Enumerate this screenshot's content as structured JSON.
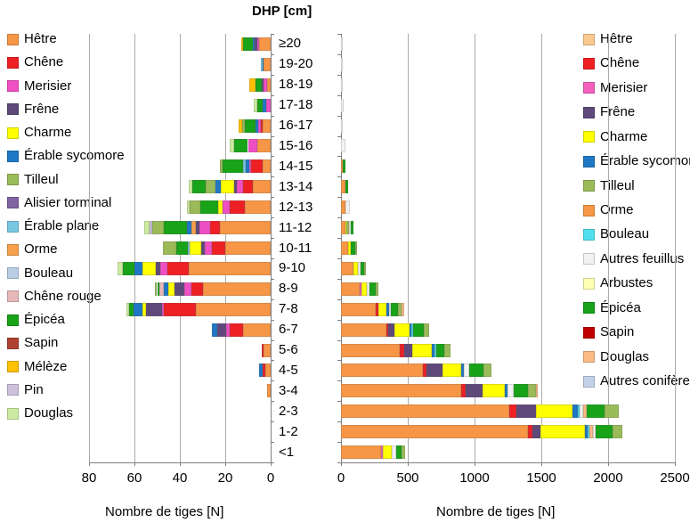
{
  "title": "DHP [cm]",
  "axis": {
    "left": {
      "label": "Nombre de tiges [N]",
      "ticks": [
        80,
        60,
        40,
        20,
        0
      ],
      "max": 80,
      "reversed": true
    },
    "right": {
      "label": "Nombre de tiges [N]",
      "ticks": [
        0,
        500,
        1000,
        1500,
        2000,
        2500
      ],
      "max": 2500,
      "reversed": false
    }
  },
  "categories": [
    "≥20",
    "19-20",
    "18-19",
    "17-18",
    "16-17",
    "15-16",
    "14-15",
    "13-14",
    "12-13",
    "11-12",
    "10-11",
    "9-10",
    "8-9",
    "7-8",
    "6-7",
    "5-6",
    "4-5",
    "3-4",
    "2-3",
    "1-2",
    "<1"
  ],
  "legend_left": [
    {
      "key": "hetre",
      "label": "Hêtre",
      "color": "#F79646"
    },
    {
      "key": "chene",
      "label": "Chêne",
      "color": "#EE2024"
    },
    {
      "key": "merisier",
      "label": "Merisier",
      "color": "#F04FC4"
    },
    {
      "key": "frene",
      "label": "Frêne",
      "color": "#5F497A"
    },
    {
      "key": "charme",
      "label": "Charme",
      "color": "#FFFF00"
    },
    {
      "key": "erable_sycomore",
      "label": "Érable sycomore",
      "color": "#1F78C5"
    },
    {
      "key": "tilleul",
      "label": "Tilleul",
      "color": "#9BBB59"
    },
    {
      "key": "alisier_torminal",
      "label": "Alisier torminal",
      "color": "#8064A2"
    },
    {
      "key": "erable_plane",
      "label": "Érable plane",
      "color": "#79C7E3"
    },
    {
      "key": "orme",
      "label": "Orme",
      "color": "#F7A04B"
    },
    {
      "key": "bouleau",
      "label": "Bouleau",
      "color": "#B9CDE5"
    },
    {
      "key": "chene_rouge",
      "label": "Chêne rouge",
      "color": "#E6B9B8"
    },
    {
      "key": "epicea",
      "label": "Épicéa",
      "color": "#18A318"
    },
    {
      "key": "sapin",
      "label": "Sapin",
      "color": "#AE4132"
    },
    {
      "key": "meleze",
      "label": "Mélèze",
      "color": "#FFC000"
    },
    {
      "key": "pin",
      "label": "Pin",
      "color": "#CCC1DA"
    },
    {
      "key": "douglas",
      "label": "Douglas",
      "color": "#CDEBA0"
    }
  ],
  "legend_right": [
    {
      "key": "hetre",
      "label": "Hêtre",
      "color": "#FAC98F"
    },
    {
      "key": "chene",
      "label": "Chêne",
      "color": "#EE2024"
    },
    {
      "key": "merisier",
      "label": "Merisier",
      "color": "#F360BE"
    },
    {
      "key": "frene",
      "label": "Frêne",
      "color": "#5F497A"
    },
    {
      "key": "charme",
      "label": "Charme",
      "color": "#FFFF00"
    },
    {
      "key": "erable_sycomore",
      "label": "Érable sycomore",
      "color": "#1F78C5"
    },
    {
      "key": "tilleul",
      "label": "Tilleul",
      "color": "#9BBB59"
    },
    {
      "key": "orme",
      "label": "Orme",
      "color": "#F79646"
    },
    {
      "key": "bouleau",
      "label": "Bouleau",
      "color": "#4FE0EE"
    },
    {
      "key": "autres_feuillus",
      "label": "Autres feuillus",
      "color": "#F2F2F2"
    },
    {
      "key": "arbustes",
      "label": "Arbustes",
      "color": "#FFFFB3"
    },
    {
      "key": "epicea",
      "label": "Épicéa",
      "color": "#18A318"
    },
    {
      "key": "sapin",
      "label": "Sapin",
      "color": "#C00000"
    },
    {
      "key": "douglas",
      "label": "Douglas",
      "color": "#F9BA84"
    },
    {
      "key": "autres_coniferes",
      "label": "Autres conifères",
      "color": "#C3D0E8"
    }
  ],
  "chart_data": {
    "type": "bar",
    "subtype": "horizontal-stacked, back-to-back pyramid",
    "title": "DHP [cm]",
    "unit": "N (nombre de tiges)",
    "categories": [
      "≥20",
      "19-20",
      "18-19",
      "17-18",
      "16-17",
      "15-16",
      "14-15",
      "13-14",
      "12-13",
      "11-12",
      "10-11",
      "9-10",
      "8-9",
      "7-8",
      "6-7",
      "5-6",
      "4-5",
      "3-4",
      "2-3",
      "1-2",
      "<1"
    ],
    "left_chart": {
      "xlabel": "Nombre de tiges [N]",
      "xlim": [
        80,
        0
      ],
      "grid": true,
      "rows": [
        [
          [
            "hetre",
            5
          ],
          [
            "merisier",
            1
          ],
          [
            "frene",
            1
          ],
          [
            "erable_sycomore",
            1
          ],
          [
            "epicea",
            4
          ],
          [
            "meleze",
            1
          ]
        ],
        [
          [
            "hetre",
            3
          ],
          [
            "erable_sycomore",
            1
          ],
          [
            "erable_plane",
            0.5
          ]
        ],
        [
          [
            "hetre",
            1.5
          ],
          [
            "merisier",
            1.5
          ],
          [
            "frene",
            1
          ],
          [
            "epicea",
            2.5
          ],
          [
            "meleze",
            3
          ]
        ],
        [
          [
            "merisier",
            2
          ],
          [
            "erable_sycomore",
            1.5
          ],
          [
            "epicea",
            2.5
          ],
          [
            "douglas",
            1.5
          ]
        ],
        [
          [
            "hetre",
            3.5
          ],
          [
            "chene",
            1
          ],
          [
            "merisier",
            1
          ],
          [
            "erable_sycomore",
            1
          ],
          [
            "epicea",
            5
          ],
          [
            "tilleul",
            1
          ],
          [
            "meleze",
            1.5
          ]
        ],
        [
          [
            "hetre",
            6
          ],
          [
            "merisier",
            4
          ],
          [
            "epicea",
            6
          ],
          [
            "douglas",
            2
          ]
        ],
        [
          [
            "hetre",
            3.5
          ],
          [
            "chene",
            5
          ],
          [
            "merisier",
            1
          ],
          [
            "erable_sycomore",
            1.5
          ],
          [
            "erable_plane",
            1
          ],
          [
            "epicea",
            9
          ],
          [
            "tilleul",
            1.5
          ]
        ],
        [
          [
            "hetre",
            8
          ],
          [
            "chene",
            4
          ],
          [
            "merisier",
            3
          ],
          [
            "frene",
            1
          ],
          [
            "charme",
            6
          ],
          [
            "erable_sycomore",
            2.5
          ],
          [
            "tilleul",
            4
          ],
          [
            "epicea",
            6
          ],
          [
            "douglas",
            1.5
          ]
        ],
        [
          [
            "hetre",
            11.5
          ],
          [
            "chene",
            6.5
          ],
          [
            "merisier",
            3
          ],
          [
            "charme",
            2
          ],
          [
            "epicea",
            8
          ],
          [
            "tilleul",
            4.5
          ],
          [
            "douglas",
            1.5
          ]
        ],
        [
          [
            "hetre",
            22.5
          ],
          [
            "chene",
            4
          ],
          [
            "merisier",
            5
          ],
          [
            "frene",
            1.5
          ],
          [
            "orme",
            2
          ],
          [
            "erable_sycomore",
            2
          ],
          [
            "epicea",
            10
          ],
          [
            "tilleul",
            5
          ],
          [
            "pin",
            1.5
          ],
          [
            "douglas",
            2
          ]
        ],
        [
          [
            "hetre",
            20
          ],
          [
            "chene",
            6
          ],
          [
            "merisier",
            3
          ],
          [
            "frene",
            1.5
          ],
          [
            "charme",
            5
          ],
          [
            "erable_plane",
            1
          ],
          [
            "epicea",
            5
          ],
          [
            "tilleul",
            6
          ]
        ],
        [
          [
            "hetre",
            36
          ],
          [
            "chene",
            9.5
          ],
          [
            "merisier",
            3
          ],
          [
            "frene",
            2
          ],
          [
            "charme",
            6
          ],
          [
            "erable_sycomore",
            3.5
          ],
          [
            "epicea",
            5
          ],
          [
            "douglas",
            2.5
          ]
        ],
        [
          [
            "hetre",
            30
          ],
          [
            "chene",
            5
          ],
          [
            "merisier",
            3
          ],
          [
            "frene",
            4.5
          ],
          [
            "charme",
            2.5
          ],
          [
            "erable_sycomore",
            2
          ],
          [
            "chene_rouge",
            2
          ],
          [
            "epicea",
            1
          ],
          [
            "tilleul",
            1
          ]
        ],
        [
          [
            "hetre",
            33
          ],
          [
            "chene",
            14
          ],
          [
            "merisier",
            1
          ],
          [
            "frene",
            7
          ],
          [
            "charme",
            1.5
          ],
          [
            "erable_sycomore",
            4
          ],
          [
            "epicea",
            2
          ],
          [
            "douglas",
            1
          ]
        ],
        [
          [
            "hetre",
            12
          ],
          [
            "chene",
            6
          ],
          [
            "merisier",
            1.5
          ],
          [
            "frene",
            4
          ],
          [
            "erable_sycomore",
            2.5
          ]
        ],
        [
          [
            "hetre",
            3
          ],
          [
            "chene",
            1
          ]
        ],
        [
          [
            "hetre",
            2.5
          ],
          [
            "chene",
            1
          ],
          [
            "erable_sycomore",
            1.5
          ]
        ],
        [
          [
            "hetre",
            1.5
          ]
        ],
        [],
        [],
        []
      ]
    },
    "right_chart": {
      "xlabel": "Nombre de tiges [N]",
      "xlim": [
        0,
        2500
      ],
      "grid": true,
      "rows": [
        [
          [
            "autres_feuillus",
            8
          ]
        ],
        [
          [
            "autres_feuillus",
            5
          ]
        ],
        [
          [
            "autres_feuillus",
            3
          ]
        ],
        [
          [
            "autres_feuillus",
            22
          ]
        ],
        [
          [
            "autres_feuillus",
            5
          ]
        ],
        [
          [
            "autres_feuillus",
            30
          ]
        ],
        [
          [
            "orme",
            10
          ],
          [
            "epicea",
            20
          ]
        ],
        [
          [
            "orme",
            35
          ],
          [
            "epicea",
            20
          ]
        ],
        [
          [
            "orme",
            30
          ],
          [
            "autres_feuillus",
            35
          ]
        ],
        [
          [
            "orme",
            30
          ],
          [
            "charme",
            10
          ],
          [
            "tilleul",
            20
          ],
          [
            "autres_feuillus",
            15
          ],
          [
            "epicea",
            15
          ]
        ],
        [
          [
            "orme",
            55
          ],
          [
            "charme",
            15
          ],
          [
            "epicea",
            35
          ],
          [
            "tilleul",
            15
          ]
        ],
        [
          [
            "orme",
            90
          ],
          [
            "charme",
            35
          ],
          [
            "autres_feuillus",
            20
          ],
          [
            "epicea",
            25
          ],
          [
            "tilleul",
            15
          ]
        ],
        [
          [
            "orme",
            140
          ],
          [
            "merisier",
            15
          ],
          [
            "charme",
            35
          ],
          [
            "autres_feuillus",
            25
          ],
          [
            "epicea",
            45
          ],
          [
            "tilleul",
            20
          ]
        ],
        [
          [
            "orme",
            260
          ],
          [
            "chene",
            20
          ],
          [
            "charme",
            60
          ],
          [
            "erable_sycomore",
            18
          ],
          [
            "autres_feuillus",
            12
          ],
          [
            "epicea",
            55
          ],
          [
            "tilleul",
            30
          ],
          [
            "douglas",
            15
          ]
        ],
        [
          [
            "orme",
            340
          ],
          [
            "chene",
            15
          ],
          [
            "frene",
            45
          ],
          [
            "charme",
            110
          ],
          [
            "erable_sycomore",
            15
          ],
          [
            "bouleau",
            18
          ],
          [
            "epicea",
            78
          ],
          [
            "tilleul",
            38
          ]
        ],
        [
          [
            "orme",
            440
          ],
          [
            "chene",
            30
          ],
          [
            "frene",
            60
          ],
          [
            "charme",
            150
          ],
          [
            "erable_sycomore",
            20
          ],
          [
            "bouleau",
            15
          ],
          [
            "epicea",
            58
          ],
          [
            "tilleul",
            48
          ]
        ],
        [
          [
            "orme",
            610
          ],
          [
            "chene",
            33
          ],
          [
            "frene",
            118
          ],
          [
            "charme",
            142
          ],
          [
            "erable_sycomore",
            18
          ],
          [
            "autres_feuillus",
            40
          ],
          [
            "epicea",
            104
          ],
          [
            "tilleul",
            60
          ]
        ],
        [
          [
            "orme",
            900
          ],
          [
            "chene",
            33
          ],
          [
            "frene",
            130
          ],
          [
            "charme",
            162
          ],
          [
            "erable_sycomore",
            20
          ],
          [
            "autres_feuillus",
            45
          ],
          [
            "epicea",
            112
          ],
          [
            "tilleul",
            56
          ],
          [
            "douglas",
            15
          ]
        ],
        [
          [
            "orme",
            1260
          ],
          [
            "chene",
            50
          ],
          [
            "frene",
            150
          ],
          [
            "charme",
            275
          ],
          [
            "erable_sycomore",
            35
          ],
          [
            "bouleau",
            15
          ],
          [
            "autres_feuillus",
            25
          ],
          [
            "douglas",
            30
          ],
          [
            "epicea",
            133
          ],
          [
            "tilleul",
            105
          ]
        ],
        [
          [
            "orme",
            1400
          ],
          [
            "chene",
            30
          ],
          [
            "frene",
            65
          ],
          [
            "charme",
            330
          ],
          [
            "erable_sycomore",
            20
          ],
          [
            "bouleau",
            15
          ],
          [
            "douglas",
            25
          ],
          [
            "autres_feuillus",
            20
          ],
          [
            "epicea",
            127
          ],
          [
            "tilleul",
            73
          ]
        ],
        [
          [
            "orme",
            300
          ],
          [
            "merisier",
            15
          ],
          [
            "charme",
            65
          ],
          [
            "autres_feuillus",
            30
          ],
          [
            "epicea",
            45
          ],
          [
            "tilleul",
            25
          ]
        ]
      ]
    },
    "legend_position": "left legend = mature-stand species (left chart); right legend = regeneration species (right chart)"
  }
}
